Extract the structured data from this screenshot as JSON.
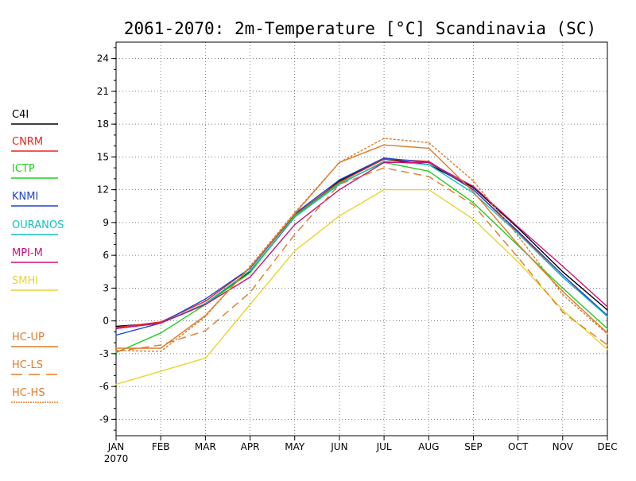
{
  "chart_data": {
    "type": "line",
    "title": "2061-2070: 2m-Temperature [°C] Scandinavia (SC)",
    "categories": [
      "JAN",
      "FEB",
      "MAR",
      "APR",
      "MAY",
      "JUN",
      "JUL",
      "AUG",
      "SEP",
      "OCT",
      "NOV",
      "DEC"
    ],
    "x_sublabel": "2070",
    "yticks": [
      -9,
      -6,
      -3,
      0,
      3,
      6,
      9,
      12,
      15,
      18,
      21,
      24
    ],
    "ylim": [
      -10.5,
      25.5
    ],
    "grid": true,
    "legend_position": "left",
    "series": [
      {
        "name": "C4I",
        "color": "#000000",
        "dash": "solid",
        "values": [
          -0.5,
          -0.2,
          1.5,
          4.5,
          9.5,
          12.8,
          14.8,
          14.3,
          12.2,
          8.5,
          4.5,
          1.0
        ]
      },
      {
        "name": "CNRM",
        "color": "#e8251f",
        "dash": "solid",
        "values": [
          -0.6,
          -0.1,
          1.8,
          4.8,
          9.7,
          12.7,
          14.8,
          14.6,
          12.0,
          8.1,
          4.0,
          0.5
        ]
      },
      {
        "name": "ICTP",
        "color": "#22cc22",
        "dash": "solid",
        "values": [
          -2.9,
          -1.1,
          1.5,
          4.4,
          9.6,
          12.6,
          14.5,
          13.7,
          10.8,
          6.9,
          3.0,
          -0.7
        ]
      },
      {
        "name": "KNMI",
        "color": "#2244cc",
        "dash": "solid",
        "values": [
          -1.3,
          -0.2,
          2.0,
          4.8,
          9.8,
          12.9,
          14.9,
          14.5,
          12.0,
          8.2,
          4.2,
          0.5
        ]
      },
      {
        "name": "OURANOS",
        "color": "#11c1c1",
        "dash": "solid",
        "values": [
          -0.7,
          -0.2,
          1.6,
          4.6,
          9.5,
          12.5,
          14.6,
          14.3,
          11.7,
          8.0,
          4.0,
          0.4
        ]
      },
      {
        "name": "MPI-M",
        "color": "#cc1177",
        "dash": "solid",
        "values": [
          -0.7,
          -0.2,
          1.5,
          4.0,
          8.8,
          12.0,
          14.5,
          14.5,
          12.3,
          8.6,
          5.0,
          1.3
        ]
      },
      {
        "name": "SMHI",
        "color": "#e6d630",
        "dash": "solid",
        "values": [
          -5.8,
          -4.6,
          -3.4,
          1.5,
          6.4,
          9.6,
          12.0,
          12.0,
          9.3,
          5.4,
          1.0,
          -2.6
        ]
      },
      {
        "name": "HC-UP",
        "color": "#e07b2a",
        "dash": "solid",
        "values": [
          -2.5,
          -2.5,
          0.5,
          4.9,
          9.8,
          14.5,
          16.1,
          15.8,
          11.8,
          7.0,
          2.7,
          -1.1
        ]
      },
      {
        "name": "HC-LS",
        "color": "#e07b2a",
        "dash": "dashed",
        "values": [
          -2.8,
          -2.2,
          -0.9,
          2.6,
          7.9,
          12.5,
          14.0,
          13.2,
          10.6,
          5.8,
          0.8,
          -2.2
        ]
      },
      {
        "name": "HC-HS",
        "color": "#e07b2a",
        "dash": "dotted",
        "values": [
          -2.7,
          -2.8,
          0.4,
          5.0,
          9.9,
          14.5,
          16.7,
          16.3,
          12.8,
          7.8,
          2.4,
          -1.2
        ]
      }
    ]
  }
}
